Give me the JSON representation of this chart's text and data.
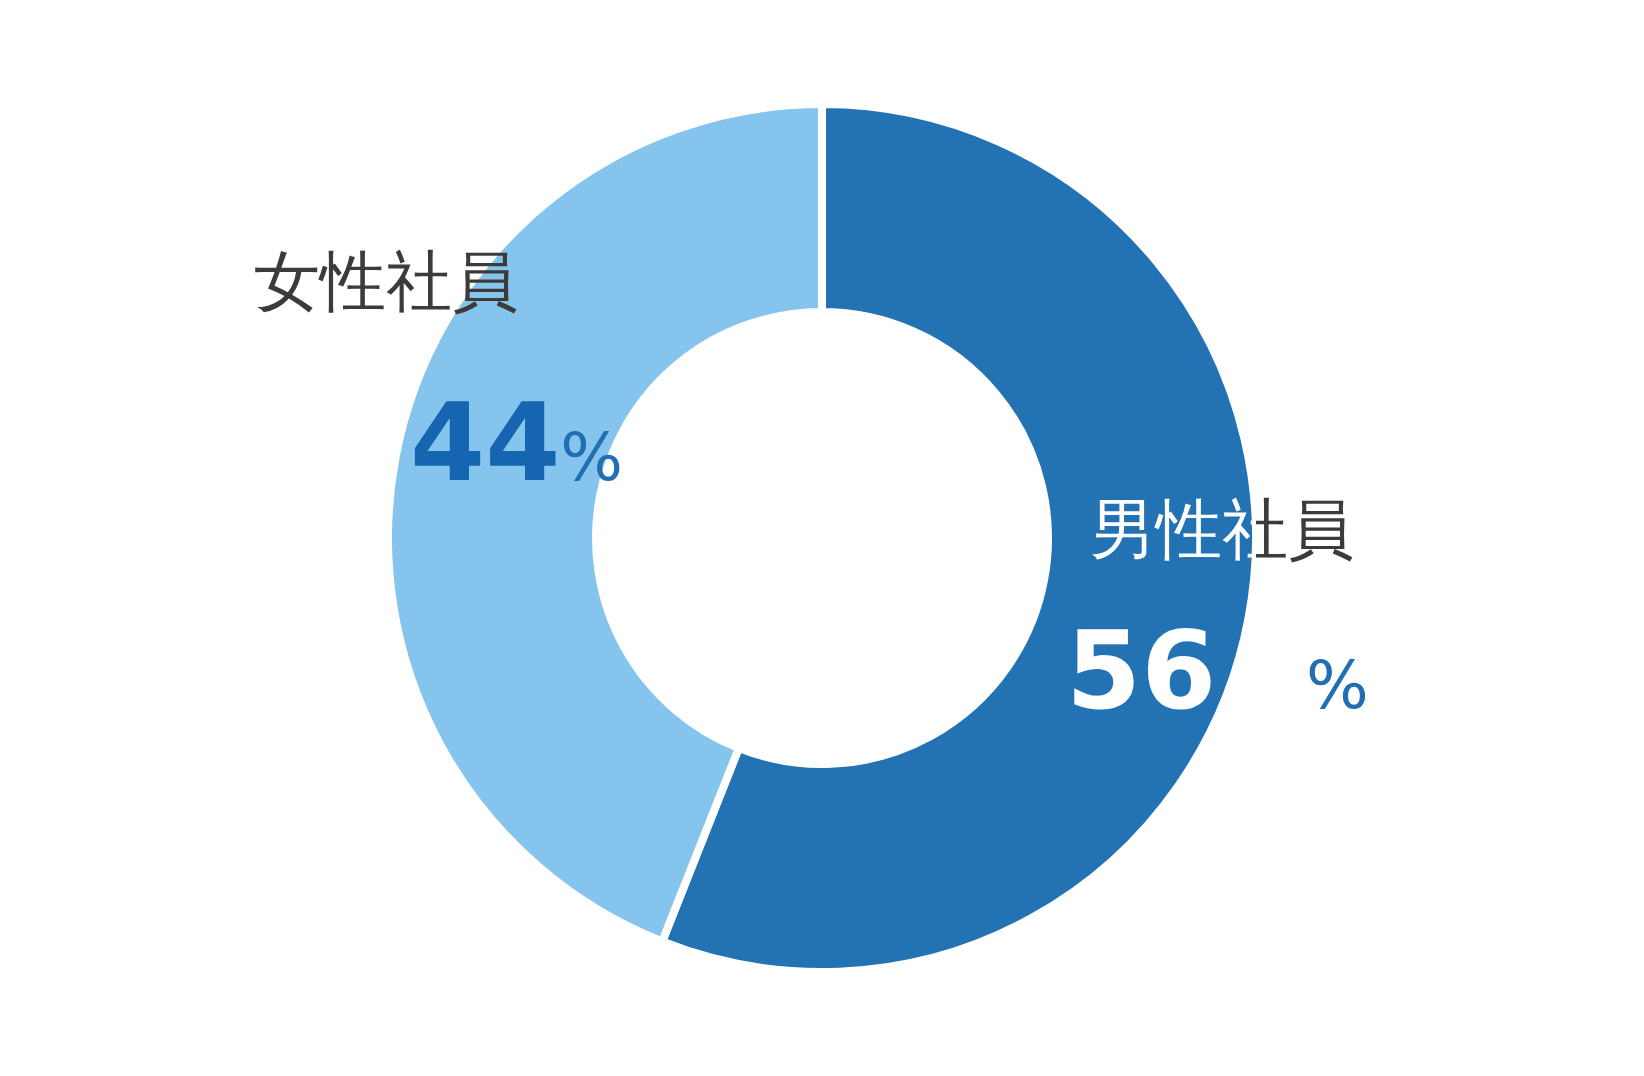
{
  "chart_data": {
    "type": "donut",
    "categories": [
      "男性社員",
      "女性社員"
    ],
    "values": [
      56,
      44
    ],
    "colors": [
      "#2272b4",
      "#85c4ec"
    ],
    "value_labels": [
      "56 %",
      "44%"
    ]
  }
}
